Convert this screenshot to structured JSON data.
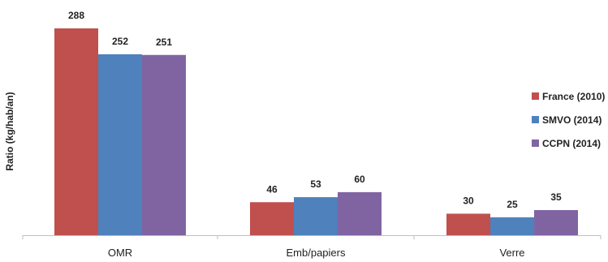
{
  "chart_data": {
    "type": "bar",
    "title": "",
    "xlabel": "",
    "ylabel": "Ratio (kg/hab/an)",
    "categories": [
      "OMR",
      "Emb/papiers",
      "Verre"
    ],
    "series": [
      {
        "name": "France (2010)",
        "values": [
          288,
          46,
          30
        ],
        "color": "#c0504d"
      },
      {
        "name": "SMVO (2014)",
        "values": [
          252,
          53,
          25
        ],
        "color": "#4f81bd"
      },
      {
        "name": "CCPN (2014)",
        "values": [
          251,
          60,
          35
        ],
        "color": "#8064a2"
      }
    ],
    "ylim": [
      0,
      290
    ],
    "grid": false,
    "legend_position": "right"
  }
}
